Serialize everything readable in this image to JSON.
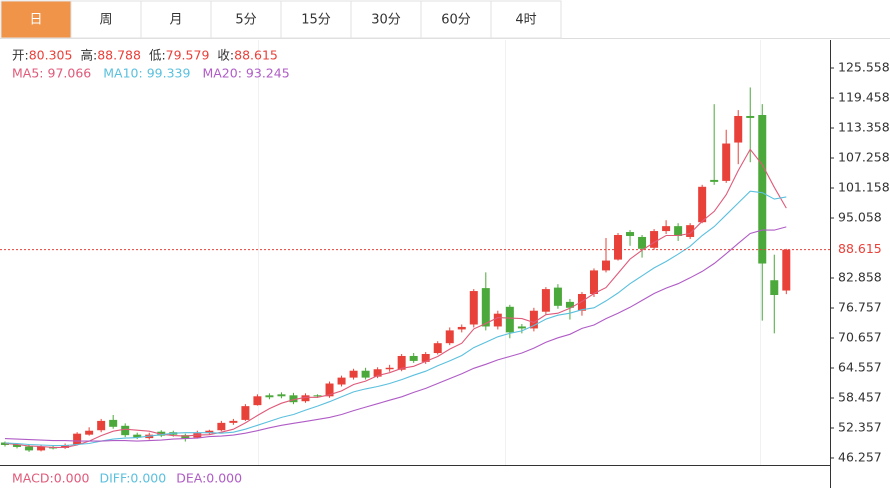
{
  "tabs": {
    "items": [
      "日",
      "周",
      "月",
      "5分",
      "15分",
      "30分",
      "60分",
      "4时"
    ],
    "selected": 0,
    "selected_color": "#f0944a"
  },
  "chart_data": {
    "type": "candlestick",
    "ohlc_labels": [
      "开:",
      "高:",
      "低:",
      "收:"
    ],
    "up_color": "#e8413a",
    "down_color": "#4ba83a",
    "candles": {
      "open": [
        49.4,
        49.0,
        48.6,
        47.8,
        48.5,
        48.3,
        49.0,
        51.0,
        51.9,
        54.0,
        52.8,
        51.0,
        50.3,
        51.6,
        51.5,
        50.9,
        50.4,
        51.3,
        51.9,
        53.4,
        54.0,
        57.0,
        59.0,
        59.2,
        59.0,
        57.8,
        59.0,
        58.8,
        61.2,
        62.6,
        64.0,
        62.8,
        64.3,
        64.2,
        67.0,
        65.8,
        67.6,
        69.6,
        72.4,
        73.4,
        80.8,
        73.0,
        77.0,
        73.0,
        72.6,
        76.0,
        80.9,
        78.0,
        76.2,
        79.6,
        84.4,
        86.6,
        92.2,
        91.2,
        89.0,
        92.4,
        93.4,
        91.2,
        94.2,
        102.8,
        102.6,
        110.4,
        115.8,
        116.0,
        82.4,
        80.305
      ],
      "high": [
        49.6,
        49.3,
        48.9,
        49.0,
        48.8,
        49.2,
        51.5,
        52.5,
        54.2,
        55.0,
        53.3,
        51.4,
        51.4,
        51.9,
        51.8,
        51.2,
        51.8,
        52.0,
        53.8,
        54.2,
        57.2,
        59.2,
        59.4,
        59.6,
        59.5,
        59.4,
        59.2,
        61.8,
        63.0,
        64.4,
        64.6,
        64.7,
        65.2,
        67.4,
        67.6,
        67.8,
        70.0,
        72.8,
        73.4,
        80.6,
        84.0,
        76.2,
        77.4,
        73.5,
        76.8,
        81.0,
        81.6,
        78.6,
        80.0,
        84.8,
        91.0,
        92.0,
        92.6,
        91.6,
        92.8,
        94.6,
        94.0,
        94.0,
        101.8,
        118.2,
        113.0,
        117.0,
        121.6,
        118.2,
        87.6,
        88.788
      ],
      "low": [
        48.6,
        48.2,
        47.5,
        47.6,
        48.0,
        48.1,
        48.8,
        50.8,
        51.5,
        52.2,
        50.5,
        50.1,
        50.0,
        50.5,
        50.6,
        49.6,
        50.2,
        51.0,
        51.7,
        53.0,
        53.8,
        56.9,
        58.2,
        58.4,
        57.2,
        57.5,
        58.5,
        58.5,
        60.8,
        62.2,
        62.2,
        62.5,
        63.8,
        63.9,
        65.6,
        65.4,
        67.3,
        69.2,
        71.8,
        72.8,
        72.2,
        72.4,
        70.6,
        71.6,
        72.0,
        75.4,
        76.6,
        74.4,
        75.2,
        79.0,
        84.0,
        86.4,
        89.4,
        87.0,
        88.6,
        91.8,
        90.4,
        90.8,
        94.0,
        101.8,
        102.2,
        106.0,
        106.4,
        74.2,
        71.6,
        79.579
      ],
      "close": [
        48.9,
        48.5,
        47.8,
        48.6,
        48.2,
        48.9,
        51.2,
        51.8,
        53.8,
        52.6,
        50.9,
        50.4,
        51.0,
        50.8,
        51.0,
        50.2,
        51.3,
        51.8,
        53.4,
        53.8,
        56.8,
        58.8,
        58.6,
        58.8,
        57.6,
        59.0,
        58.8,
        61.4,
        62.6,
        64.0,
        62.6,
        64.3,
        64.6,
        67.0,
        66.0,
        67.4,
        69.6,
        72.2,
        72.9,
        80.2,
        73.0,
        75.6,
        71.8,
        72.6,
        76.2,
        80.6,
        77.2,
        76.8,
        79.6,
        84.4,
        86.4,
        91.6,
        91.4,
        88.8,
        92.4,
        93.4,
        91.4,
        93.6,
        101.4,
        102.4,
        110.2,
        115.8,
        115.4,
        85.8,
        79.4,
        88.615
      ]
    },
    "series": [
      {
        "name": "MA5:",
        "color": "#e05a7a",
        "values": [
          49.2,
          49.0,
          48.7,
          48.6,
          48.4,
          48.4,
          48.9,
          49.7,
          50.8,
          51.7,
          52.1,
          51.9,
          51.7,
          51.1,
          50.8,
          50.7,
          50.9,
          51.0,
          51.5,
          52.1,
          53.4,
          54.9,
          56.3,
          57.4,
          58.1,
          58.6,
          58.6,
          59.1,
          59.9,
          61.2,
          61.9,
          63.0,
          63.6,
          64.5,
          64.9,
          65.9,
          66.9,
          68.4,
          69.6,
          72.5,
          73.6,
          74.8,
          74.7,
          74.6,
          73.8,
          75.4,
          75.7,
          76.7,
          78.1,
          79.7,
          80.9,
          83.8,
          86.7,
          88.5,
          90.1,
          91.5,
          91.5,
          91.9,
          94.4,
          96.4,
          99.8,
          104.7,
          109.0,
          105.9,
          101.3,
          97.066
        ]
      },
      {
        "name": "MA10:",
        "color": "#5bc0de",
        "values": [
          49.3,
          49.2,
          49.0,
          48.9,
          48.8,
          48.8,
          49.0,
          49.2,
          49.7,
          50.1,
          50.3,
          50.4,
          50.7,
          51.0,
          51.3,
          51.4,
          51.4,
          51.4,
          51.3,
          51.5,
          52.1,
          52.9,
          53.7,
          54.5,
          55.1,
          56.0,
          56.8,
          57.7,
          58.7,
          59.7,
          60.3,
          60.8,
          61.4,
          62.2,
          63.1,
          63.9,
          65.0,
          66.0,
          67.1,
          68.7,
          69.8,
          70.9,
          71.6,
          72.1,
          73.2,
          74.5,
          75.3,
          75.7,
          76.4,
          76.8,
          78.2,
          79.8,
          81.7,
          83.3,
          84.9,
          86.2,
          87.7,
          89.3,
          91.5,
          93.3,
          95.7,
          98.1,
          100.5,
          100.2,
          98.9,
          99.339
        ]
      },
      {
        "name": "MA20:",
        "color": "#b05cc6",
        "values": [
          50.2,
          50.1,
          50.0,
          49.9,
          49.8,
          49.8,
          49.7,
          49.7,
          49.7,
          49.8,
          49.8,
          49.7,
          49.8,
          49.9,
          50.1,
          50.2,
          50.3,
          50.6,
          50.7,
          50.9,
          51.3,
          51.8,
          52.4,
          52.9,
          53.3,
          53.7,
          54.1,
          54.5,
          55.1,
          55.9,
          56.6,
          57.3,
          58.0,
          58.7,
          59.6,
          60.4,
          61.4,
          62.4,
          63.4,
          64.5,
          65.3,
          66.2,
          66.9,
          67.6,
          68.6,
          69.8,
          70.7,
          71.4,
          72.6,
          73.3,
          74.6,
          75.7,
          76.9,
          78.3,
          79.7,
          80.8,
          81.7,
          82.9,
          84.2,
          85.8,
          87.8,
          89.9,
          91.9,
          92.6,
          92.6,
          93.245
        ]
      }
    ],
    "ylim": [
      44.83,
      131.25
    ],
    "yticks": [
      125.558,
      119.458,
      113.358,
      107.258,
      101.158,
      95.058,
      82.858,
      76.757,
      70.657,
      64.557,
      58.457,
      52.357,
      46.257
    ],
    "last_price_line": true,
    "indicators": [
      {
        "name": "MACD:",
        "value": {
          "value": 0,
          "label": "0.000"
        },
        "color": "#e05a7a"
      },
      {
        "name": "DIFF:",
        "value": {
          "value": 0,
          "label": "0.000"
        },
        "color": "#5bc0de"
      },
      {
        "name": "DEA:",
        "value": {
          "value": 0,
          "label": "0.000"
        },
        "color": "#b05cc6"
      }
    ]
  }
}
